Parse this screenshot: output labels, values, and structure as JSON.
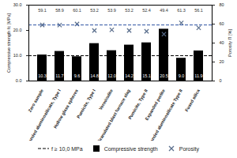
{
  "chart_data": {
    "type": "bar",
    "categories": [
      "Zero sample",
      "Expanded aluminosilicate, Type I",
      "Hollow glass spheres",
      "Pumicite, Type I",
      "Vermiculite",
      "Granulated blast furnace slag",
      "Pumicite, Type II",
      "Expanded perlite",
      "Expanded aluminosilicate Type II",
      "Fused silica"
    ],
    "ylabel": "Compressive strength fc [MPa]",
    "y2label": "Porosity Π [%]",
    "ylim": [
      0,
      30
    ],
    "yticks": [
      {
        "value": 0,
        "label": "0.0"
      },
      {
        "value": 10,
        "label": "10.0"
      },
      {
        "value": 20,
        "label": "20.0"
      },
      {
        "value": 30,
        "label": "30.0"
      }
    ],
    "y2lim": [
      0,
      80
    ],
    "y2ticks": [
      0,
      20,
      40,
      60,
      80
    ],
    "data_labels": true,
    "legend": "bottom",
    "series": [
      {
        "name": "Compressive strength",
        "type": "bar",
        "color": "#000000",
        "values": [
          10.3,
          11.7,
          9.6,
          14.8,
          12.0,
          14.2,
          15.1,
          20.5,
          9.0,
          11.9
        ],
        "value_labels": [
          "10.3",
          "11.7",
          "9.6",
          "14.8",
          "12.0",
          "14.2",
          "15.1",
          "20.5",
          "9.0",
          "11.9"
        ]
      },
      {
        "name": "Porosity",
        "type": "scatter",
        "marker": "x",
        "color": "#5a6e8c",
        "axis": "y2",
        "values": [
          59.1,
          58.9,
          60.1,
          53.2,
          53.9,
          53.2,
          52.4,
          49.4,
          61.3,
          56.1
        ]
      }
    ],
    "reference_lines": [
      {
        "name": "f ≥ 10,0 MPa",
        "value": 10,
        "color": "#000000",
        "line_style": "dashed"
      },
      {
        "value": 59.1,
        "axis": "y2",
        "color": "#2f55a4",
        "line_style": "dashed"
      }
    ]
  }
}
